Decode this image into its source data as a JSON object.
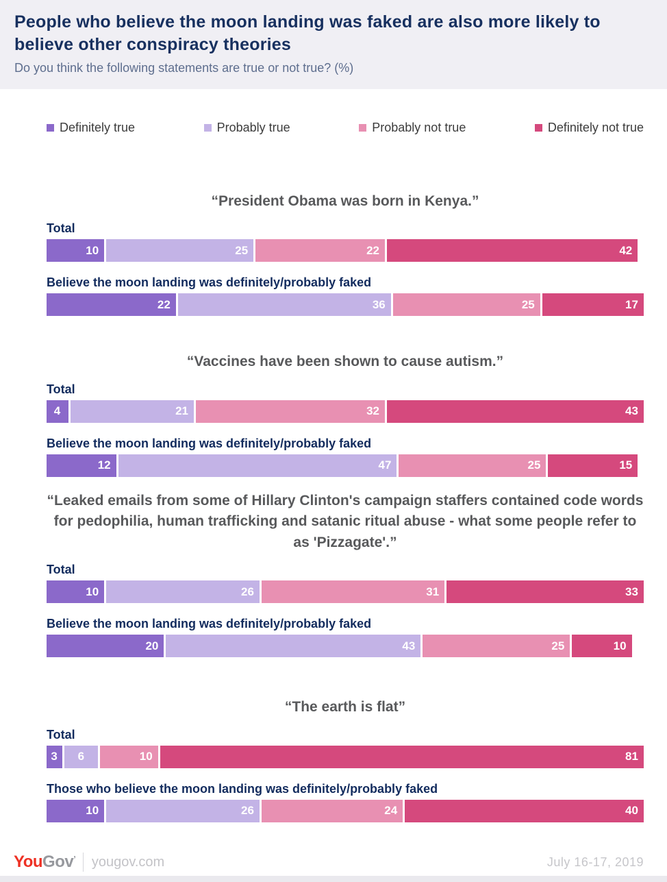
{
  "header": {
    "title": "People who believe the moon landing was faked are also more likely to believe other conspiracy theories",
    "subtitle": "Do you think the following statements are true or not true? (%)"
  },
  "legend": {
    "items": [
      {
        "label": "Definitely true",
        "color": "#8b69ca"
      },
      {
        "label": "Probably true",
        "color": "#c3b3e6"
      },
      {
        "label": "Probably not true",
        "color": "#e890b2"
      },
      {
        "label": "Definitely not true",
        "color": "#d5497d"
      }
    ]
  },
  "chart_data": {
    "type": "bar",
    "stacked": true,
    "orientation": "horizontal",
    "xlim": [
      0,
      100
    ],
    "grid": false,
    "legend_position": "top",
    "categories": [
      "Definitely true",
      "Probably true",
      "Probably not true",
      "Definitely not true"
    ],
    "colors": [
      "#8b69ca",
      "#c3b3e6",
      "#e890b2",
      "#d5497d"
    ],
    "sections": [
      {
        "title": "“President Obama was born in Kenya.”",
        "rows": [
          {
            "label": "Total",
            "values": [
              10,
              25,
              22,
              42
            ]
          },
          {
            "label": "Believe the moon landing was definitely/probably faked",
            "values": [
              22,
              36,
              25,
              17
            ]
          }
        ]
      },
      {
        "title": "“Vaccines have been shown to cause autism.”",
        "rows": [
          {
            "label": "Total",
            "values": [
              4,
              21,
              32,
              43
            ]
          },
          {
            "label": "Believe the moon landing was definitely/probably faked",
            "values": [
              12,
              47,
              25,
              15
            ]
          }
        ]
      },
      {
        "title": "“Leaked emails from some of Hillary Clinton's campaign staffers contained code words for pedophilia, human trafficking and satanic ritual abuse - what some people refer to as 'Pizzagate'.”",
        "rows": [
          {
            "label": "Total",
            "values": [
              10,
              26,
              31,
              33
            ]
          },
          {
            "label": "Believe the moon landing was definitely/probably faked",
            "values": [
              20,
              43,
              25,
              10
            ]
          }
        ]
      },
      {
        "title": "“The earth is flat”",
        "rows": [
          {
            "label": "Total",
            "values": [
              3,
              6,
              10,
              81
            ]
          },
          {
            "label": "Those who believe the moon landing was definitely/probably faked",
            "values": [
              10,
              26,
              24,
              40
            ]
          }
        ]
      }
    ]
  },
  "footer": {
    "brand_you": "You",
    "brand_gov": "Gov",
    "site": "yougov.com",
    "date": "July 16-17, 2019"
  }
}
